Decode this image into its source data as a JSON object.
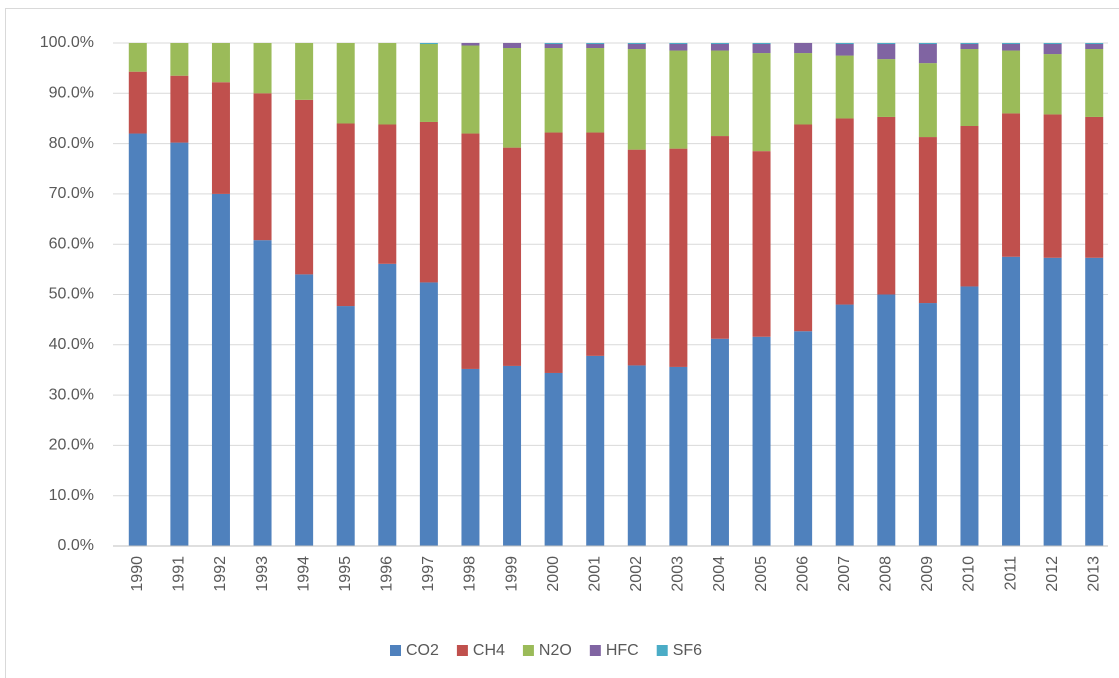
{
  "chart_data": {
    "type": "stacked_bar",
    "categories": [
      "1990",
      "1991",
      "1992",
      "1993",
      "1994",
      "1995",
      "1996",
      "1997",
      "1998",
      "1999",
      "2000",
      "2001",
      "2002",
      "2003",
      "2004",
      "2005",
      "2006",
      "2007",
      "2008",
      "2009",
      "2010",
      "2011",
      "2012",
      "2013"
    ],
    "series": [
      {
        "name": "CO2",
        "color": "#4f81bd",
        "values": [
          82,
          80.2,
          70,
          60.8,
          54,
          47.7,
          56.1,
          52.4,
          35.2,
          35.8,
          34.4,
          37.8,
          35.9,
          35.6,
          41.2,
          41.6,
          42.7,
          48,
          50,
          48.3,
          51.6,
          57.5,
          57.3,
          57.3
        ]
      },
      {
        "name": "CH4",
        "color": "#c0504d",
        "values": [
          12.3,
          13.3,
          22.2,
          29.2,
          34.7,
          36.3,
          27.7,
          31.9,
          46.8,
          43.4,
          47.8,
          44.4,
          42.9,
          43.4,
          40.3,
          36.9,
          41.1,
          37,
          35.3,
          33,
          31.9,
          28.5,
          28.5,
          28
        ]
      },
      {
        "name": "N2O",
        "color": "#9bbb59",
        "values": [
          5.7,
          6.5,
          7.8,
          10,
          11.3,
          16,
          16.2,
          15.5,
          17.5,
          19.8,
          16.8,
          16.8,
          20,
          19.5,
          17,
          19.5,
          14.2,
          12.5,
          11.5,
          14.7,
          15.3,
          12.5,
          12,
          13.5
        ]
      },
      {
        "name": "HFC",
        "color": "#8064a2",
        "values": [
          0,
          0,
          0,
          0,
          0,
          0,
          0,
          0,
          0.5,
          1,
          0.8,
          0.8,
          1,
          1.3,
          1.3,
          1.8,
          2,
          2.3,
          3,
          3.8,
          1,
          1.3,
          2,
          1
        ]
      },
      {
        "name": "SF6",
        "color": "#4bacc6",
        "values": [
          0,
          0,
          0,
          0,
          0,
          0,
          0,
          0.2,
          0,
          0,
          0.2,
          0.2,
          0.2,
          0.2,
          0.2,
          0.2,
          0,
          0.2,
          0.2,
          0.2,
          0.2,
          0.2,
          0.2,
          0.2
        ]
      }
    ],
    "ylim": [
      0,
      100
    ],
    "yticks": [
      {
        "value": 0,
        "label": "0.0%"
      },
      {
        "value": 10,
        "label": "10.0%"
      },
      {
        "value": 20,
        "label": "20.0%"
      },
      {
        "value": 30,
        "label": "30.0%"
      },
      {
        "value": 40,
        "label": "40.0%"
      },
      {
        "value": 50,
        "label": "50.0%"
      },
      {
        "value": 60,
        "label": "60.0%"
      },
      {
        "value": 70,
        "label": "70.0%"
      },
      {
        "value": 80,
        "label": "80.0%"
      },
      {
        "value": 90,
        "label": "90.0%"
      },
      {
        "value": 100,
        "label": "100.0%"
      }
    ],
    "grid": true,
    "legend": "bottom"
  }
}
